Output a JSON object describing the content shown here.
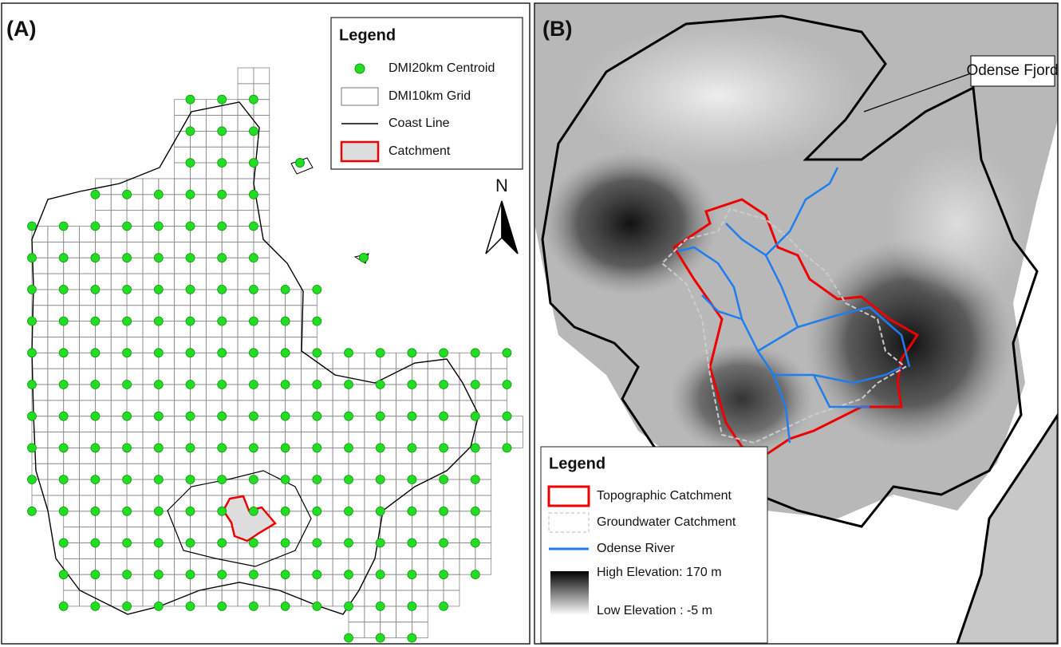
{
  "panels": [
    {
      "label": "(A)",
      "legend": {
        "title": "Legend",
        "items": [
          "DMI20km Centroid",
          "DMI10km Grid",
          "Coast Line",
          "Catchment"
        ]
      },
      "north_arrow": "N"
    },
    {
      "label": "(B)",
      "callout": "Odense Fjord",
      "legend": {
        "title": "Legend",
        "items": [
          "Topographic Catchment",
          "Groundwater Catchment",
          "Odense River",
          "High Elevation: 170 m",
          "Low Elevation : -5 m"
        ]
      }
    }
  ]
}
